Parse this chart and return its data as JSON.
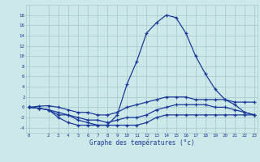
{
  "xlabel": "Graphe des températures (°c)",
  "hours": [
    0,
    1,
    2,
    3,
    4,
    5,
    6,
    7,
    8,
    9,
    10,
    11,
    12,
    13,
    14,
    15,
    16,
    17,
    18,
    19,
    20,
    21,
    22,
    23
  ],
  "line_max": [
    0,
    -0.2,
    -0.5,
    -1.5,
    -1.5,
    -2.5,
    -3.0,
    -3.5,
    -3.5,
    -1.5,
    4.5,
    9.0,
    14.5,
    16.5,
    18.0,
    17.5,
    14.5,
    10.0,
    6.5,
    3.5,
    1.5,
    0.5,
    -1.0,
    -1.5
  ],
  "line_min": [
    0,
    -0.2,
    -0.5,
    -2.0,
    -3.0,
    -3.5,
    -3.5,
    -3.5,
    -3.5,
    -3.5,
    -3.5,
    -3.5,
    -3.0,
    -2.0,
    -1.5,
    -1.5,
    -1.5,
    -1.5,
    -1.5,
    -1.5,
    -1.5,
    -1.5,
    -1.5,
    -1.5
  ],
  "line_avg1": [
    0,
    0.2,
    0.3,
    0.0,
    -0.5,
    -1.0,
    -1.0,
    -1.5,
    -1.5,
    -1.0,
    0.0,
    0.5,
    1.0,
    1.5,
    2.0,
    2.0,
    2.0,
    1.5,
    1.5,
    1.5,
    1.5,
    1.0,
    1.0,
    1.0
  ],
  "line_avg2": [
    0,
    -0.2,
    -0.5,
    -1.0,
    -1.5,
    -2.0,
    -2.5,
    -2.5,
    -3.0,
    -2.5,
    -2.0,
    -2.0,
    -1.5,
    -0.5,
    0.0,
    0.5,
    0.5,
    0.5,
    0.5,
    0.0,
    0.0,
    -0.5,
    -1.0,
    -1.5
  ],
  "bg_color": "#cce8e8",
  "grid_color": "#aacccc",
  "line_color": "#1a3a9a",
  "ylim": [
    -5,
    20
  ],
  "yticks": [
    -4,
    -2,
    0,
    2,
    4,
    6,
    8,
    10,
    12,
    14,
    16,
    18
  ],
  "xticks": [
    0,
    2,
    3,
    4,
    5,
    6,
    7,
    8,
    9,
    10,
    11,
    12,
    13,
    14,
    15,
    16,
    17,
    18,
    19,
    20,
    21,
    22,
    23
  ]
}
